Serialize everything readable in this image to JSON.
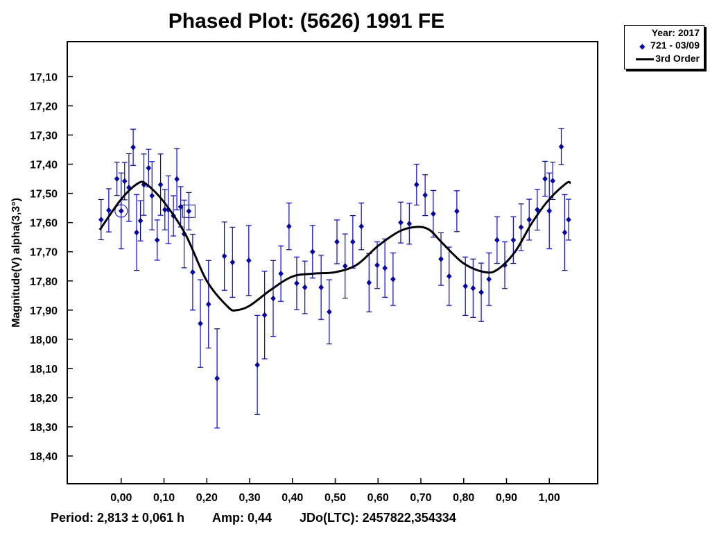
{
  "chart_data": {
    "type": "scatter",
    "title": "Phased Plot: (5626) 1991 FE",
    "xlabel": "",
    "ylabel": "Magnitude(V) alpha(3,3°)",
    "xlim": [
      -0.126,
      1.113
    ],
    "ylim": [
      18.495,
      16.98
    ],
    "y_inverted": true,
    "grid": false,
    "x_ticks": [
      "0,00",
      "0,10",
      "0,20",
      "0,30",
      "0,40",
      "0,50",
      "0,60",
      "0,70",
      "0,80",
      "0,90",
      "1,00"
    ],
    "y_ticks": [
      "17,10",
      "17,20",
      "17,30",
      "17,40",
      "17,50",
      "17,60",
      "17,70",
      "17,80",
      "17,90",
      "18,00",
      "18,10",
      "18,20",
      "18,30",
      "18,40"
    ],
    "legend": {
      "position": "top-right outside",
      "header": "Year: 2017",
      "entries": [
        {
          "label": "721 - 03/09",
          "kind": "point",
          "color": "#0000cc"
        },
        {
          "label": "3rd Order",
          "kind": "line",
          "color": "#000000"
        }
      ]
    },
    "series": [
      {
        "name": "721 - 03/09",
        "color": "#0000ff",
        "points": [
          {
            "x": -0.047,
            "y": 17.59,
            "err": 0.069
          },
          {
            "x": -0.029,
            "y": 17.558,
            "err": 0.074
          },
          {
            "x": -0.01,
            "y": 17.45,
            "err": 0.057
          },
          {
            "x": 0.0,
            "y": 17.56,
            "err": 0.13,
            "marker": "circle"
          },
          {
            "x": 0.008,
            "y": 17.458,
            "err": 0.064
          },
          {
            "x": 0.018,
            "y": 17.48,
            "err": 0.116
          },
          {
            "x": 0.028,
            "y": 17.342,
            "err": 0.062
          },
          {
            "x": 0.036,
            "y": 17.634,
            "err": 0.13
          },
          {
            "x": 0.045,
            "y": 17.594,
            "err": 0.069
          },
          {
            "x": 0.053,
            "y": 17.47,
            "err": 0.105
          },
          {
            "x": 0.064,
            "y": 17.413,
            "err": 0.064
          },
          {
            "x": 0.072,
            "y": 17.508,
            "err": 0.117
          },
          {
            "x": 0.084,
            "y": 17.66,
            "err": 0.069
          },
          {
            "x": 0.092,
            "y": 17.47,
            "err": 0.105
          },
          {
            "x": 0.102,
            "y": 17.556,
            "err": 0.069
          },
          {
            "x": 0.11,
            "y": 17.556,
            "err": 0.116
          },
          {
            "x": 0.122,
            "y": 17.577,
            "err": 0.069
          },
          {
            "x": 0.13,
            "y": 17.451,
            "err": 0.105
          },
          {
            "x": 0.139,
            "y": 17.546,
            "err": 0.069
          },
          {
            "x": 0.147,
            "y": 17.639,
            "err": 0.116
          },
          {
            "x": 0.158,
            "y": 17.561,
            "err": 0.064,
            "marker": "square"
          },
          {
            "x": 0.167,
            "y": 17.77,
            "err": 0.13
          },
          {
            "x": 0.185,
            "y": 17.946,
            "err": 0.15
          },
          {
            "x": 0.204,
            "y": 17.88,
            "err": 0.15
          },
          {
            "x": 0.224,
            "y": 18.134,
            "err": 0.17
          },
          {
            "x": 0.241,
            "y": 17.715,
            "err": 0.117
          },
          {
            "x": 0.26,
            "y": 17.736,
            "err": 0.12
          },
          {
            "x": 0.298,
            "y": 17.73,
            "err": 0.12
          },
          {
            "x": 0.318,
            "y": 18.088,
            "err": 0.17
          },
          {
            "x": 0.335,
            "y": 17.917,
            "err": 0.15
          },
          {
            "x": 0.355,
            "y": 17.86,
            "err": 0.13
          },
          {
            "x": 0.373,
            "y": 17.775,
            "err": 0.095
          },
          {
            "x": 0.392,
            "y": 17.613,
            "err": 0.08
          },
          {
            "x": 0.41,
            "y": 17.808,
            "err": 0.09
          },
          {
            "x": 0.429,
            "y": 17.822,
            "err": 0.09
          },
          {
            "x": 0.447,
            "y": 17.7,
            "err": 0.09
          },
          {
            "x": 0.467,
            "y": 17.822,
            "err": 0.11
          },
          {
            "x": 0.486,
            "y": 17.906,
            "err": 0.11
          },
          {
            "x": 0.504,
            "y": 17.666,
            "err": 0.075
          },
          {
            "x": 0.523,
            "y": 17.749,
            "err": 0.11
          },
          {
            "x": 0.541,
            "y": 17.666,
            "err": 0.09
          },
          {
            "x": 0.561,
            "y": 17.613,
            "err": 0.08
          },
          {
            "x": 0.579,
            "y": 17.806,
            "err": 0.1
          },
          {
            "x": 0.598,
            "y": 17.746,
            "err": 0.08
          },
          {
            "x": 0.616,
            "y": 17.756,
            "err": 0.1
          },
          {
            "x": 0.635,
            "y": 17.794,
            "err": 0.09
          },
          {
            "x": 0.653,
            "y": 17.6,
            "err": 0.07
          },
          {
            "x": 0.673,
            "y": 17.604,
            "err": 0.07
          },
          {
            "x": 0.69,
            "y": 17.47,
            "err": 0.07
          },
          {
            "x": 0.71,
            "y": 17.506,
            "err": 0.07
          },
          {
            "x": 0.729,
            "y": 17.57,
            "err": 0.08
          },
          {
            "x": 0.747,
            "y": 17.725,
            "err": 0.09
          },
          {
            "x": 0.766,
            "y": 17.784,
            "err": 0.1
          },
          {
            "x": 0.784,
            "y": 17.561,
            "err": 0.07
          },
          {
            "x": 0.804,
            "y": 17.818,
            "err": 0.1
          },
          {
            "x": 0.822,
            "y": 17.825,
            "err": 0.1
          },
          {
            "x": 0.841,
            "y": 17.839,
            "err": 0.1
          },
          {
            "x": 0.859,
            "y": 17.794,
            "err": 0.09
          },
          {
            "x": 0.878,
            "y": 17.66,
            "err": 0.08
          },
          {
            "x": 0.896,
            "y": 17.746,
            "err": 0.08
          },
          {
            "x": 0.916,
            "y": 17.66,
            "err": 0.08
          },
          {
            "x": 0.934,
            "y": 17.616,
            "err": 0.08
          },
          {
            "x": 0.953,
            "y": 17.59,
            "err": 0.07
          },
          {
            "x": 0.972,
            "y": 17.556,
            "err": 0.07
          },
          {
            "x": 0.99,
            "y": 17.45,
            "err": 0.06
          },
          {
            "x": 1.0,
            "y": 17.56,
            "err": 0.13
          },
          {
            "x": 1.008,
            "y": 17.457,
            "err": 0.064
          },
          {
            "x": 1.028,
            "y": 17.34,
            "err": 0.062
          },
          {
            "x": 1.036,
            "y": 17.634,
            "err": 0.13
          },
          {
            "x": 1.045,
            "y": 17.59,
            "err": 0.07
          }
        ]
      },
      {
        "name": "3rd Order",
        "color": "#000000",
        "type": "line",
        "x": [
          -0.05,
          0.0,
          0.04,
          0.06,
          0.1,
          0.15,
          0.2,
          0.25,
          0.27,
          0.3,
          0.35,
          0.4,
          0.45,
          0.5,
          0.55,
          0.6,
          0.65,
          0.69,
          0.72,
          0.75,
          0.8,
          0.85,
          0.88,
          0.92,
          0.96,
          1.0,
          1.04,
          1.05
        ],
        "y": [
          17.625,
          17.52,
          17.465,
          17.47,
          17.53,
          17.64,
          17.8,
          17.89,
          17.9,
          17.885,
          17.83,
          17.785,
          17.775,
          17.77,
          17.745,
          17.68,
          17.63,
          17.615,
          17.625,
          17.67,
          17.74,
          17.77,
          17.76,
          17.7,
          17.6,
          17.52,
          17.465,
          17.465
        ]
      }
    ]
  },
  "footer": {
    "period": "Period: 2,813 ± 0,061 h",
    "amp": "Amp: 0,44",
    "jdo": "JDo(LTC): 2457822,354334"
  }
}
